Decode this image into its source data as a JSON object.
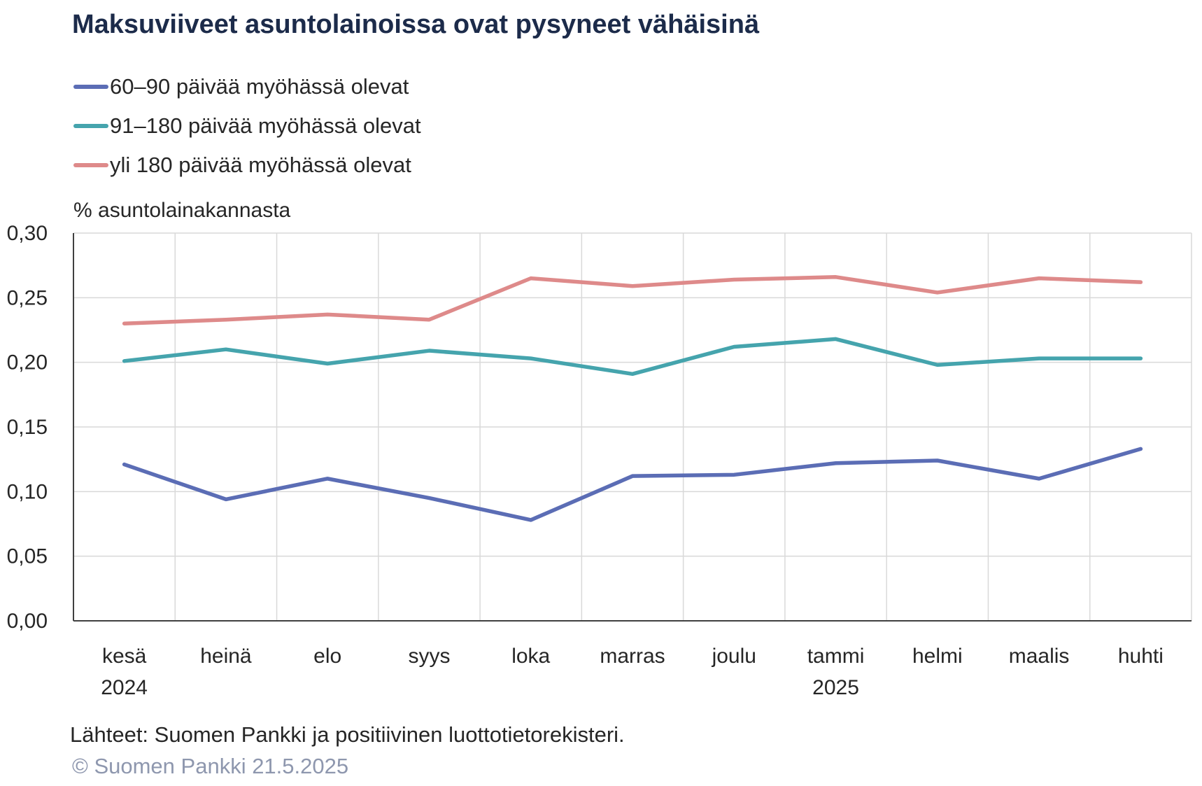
{
  "title": "Maksuviiveet asuntolainoissa ovat pysyneet vähäisinä",
  "unit_label": "% asuntolainakannasta",
  "source": "Lähteet: Suomen Pankki ja positiivinen luottotietorekisteri.",
  "copyright": "© Suomen Pankki 21.5.2025",
  "chart_data": {
    "type": "line",
    "title": "Maksuviiveet asuntolainoissa ovat pysyneet vähäisinä",
    "ylabel": "% asuntolainakannasta",
    "xlabel": "",
    "categories": [
      "kesä",
      "heinä",
      "elo",
      "syys",
      "loka",
      "marras",
      "joulu",
      "tammi",
      "helmi",
      "maalis",
      "huhti"
    ],
    "year_labels": [
      "2024",
      "",
      "",
      "",
      "",
      "",
      "",
      "2025",
      "",
      "",
      ""
    ],
    "ylim": [
      0,
      0.3
    ],
    "yticks": [
      "0,00",
      "0,05",
      "0,10",
      "0,15",
      "0,20",
      "0,25",
      "0,30"
    ],
    "grid": true,
    "legend_position": "top-left",
    "series": [
      {
        "name": "60–90 päivää myöhässä olevat",
        "color": "#5b6db5",
        "values": [
          0.121,
          0.094,
          0.11,
          0.095,
          0.078,
          0.112,
          0.113,
          0.122,
          0.124,
          0.11,
          0.133
        ]
      },
      {
        "name": "91–180 päivää myöhässä olevat",
        "color": "#45a4ad",
        "values": [
          0.201,
          0.21,
          0.199,
          0.209,
          0.203,
          0.191,
          0.212,
          0.218,
          0.198,
          0.203,
          0.203
        ]
      },
      {
        "name": "yli 180 päivää myöhässä olevat",
        "color": "#de8a8a",
        "values": [
          0.23,
          0.233,
          0.237,
          0.233,
          0.265,
          0.259,
          0.264,
          0.266,
          0.254,
          0.265,
          0.262
        ]
      }
    ]
  }
}
